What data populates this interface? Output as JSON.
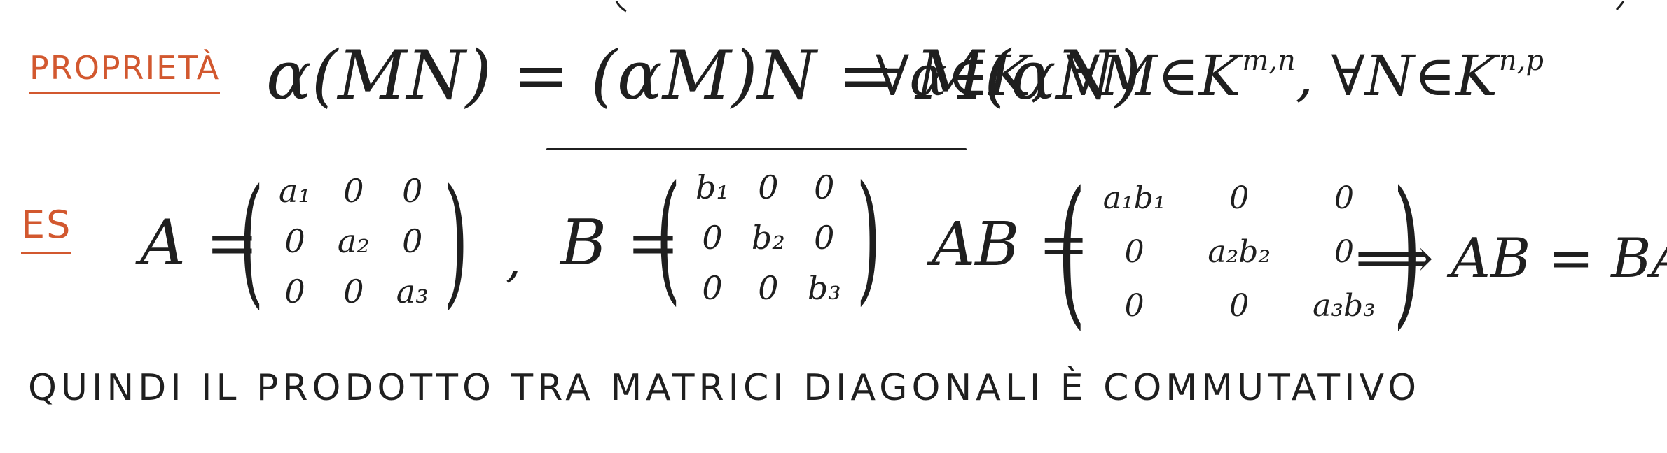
{
  "property_label": "PROPRIETÀ",
  "example_label": "ES",
  "property_formula": {
    "lhs": "α(MN) = (αM)N = M(αN)",
    "quantifier_alpha": "∀α∈K,",
    "quantifier_m": "∀M∈K",
    "m_exponent": "m,n",
    "quantifier_n": ", ∀N∈K",
    "n_exponent": "n,p"
  },
  "example": {
    "a_name": "A =",
    "a_cells": [
      "a₁",
      "0",
      "0",
      "0",
      "a₂",
      "0",
      "0",
      "0",
      "a₃"
    ],
    "comma": ",",
    "b_name": "B =",
    "b_cells": [
      "b₁",
      "0",
      "0",
      "0",
      "b₂",
      "0",
      "0",
      "0",
      "b₃"
    ],
    "ab_name": "AB =",
    "ab_cells": [
      "a₁b₁",
      "0",
      "0",
      "0",
      "a₂b₂",
      "0",
      "0",
      "0",
      "a₃b₃"
    ],
    "conclusion": "⟹ AB = BA"
  },
  "statement": "QUINDI IL PRODOTTO TRA MATRICI DIAGONALI È COMMUTATIVO",
  "colors": {
    "ink": "#1f1f1f",
    "accent": "#d2582f",
    "background": "#ffffff"
  }
}
